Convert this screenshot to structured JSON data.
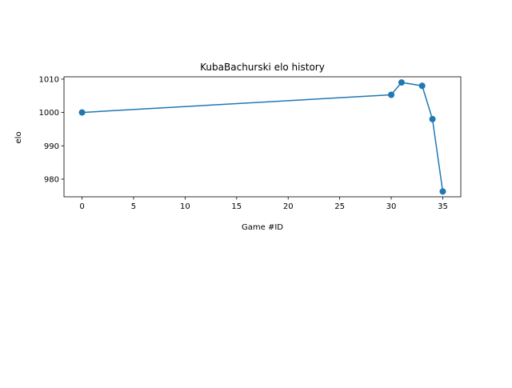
{
  "chart_data": {
    "type": "line",
    "title": "KubaBachurski elo history",
    "xlabel": "Game #ID",
    "ylabel": "elo",
    "x": [
      0,
      30,
      31,
      33,
      34,
      35
    ],
    "y": [
      1000,
      1005.3,
      1009,
      1008,
      998,
      976.3
    ],
    "xlim": [
      -1.75,
      36.75
    ],
    "ylim": [
      974.7,
      1010.7
    ],
    "xticks": [
      0,
      5,
      10,
      15,
      20,
      25,
      30,
      35
    ],
    "yticks": [
      980,
      990,
      1000,
      1010
    ],
    "grid": false,
    "marker": "circle",
    "color": "#1f77b4"
  }
}
